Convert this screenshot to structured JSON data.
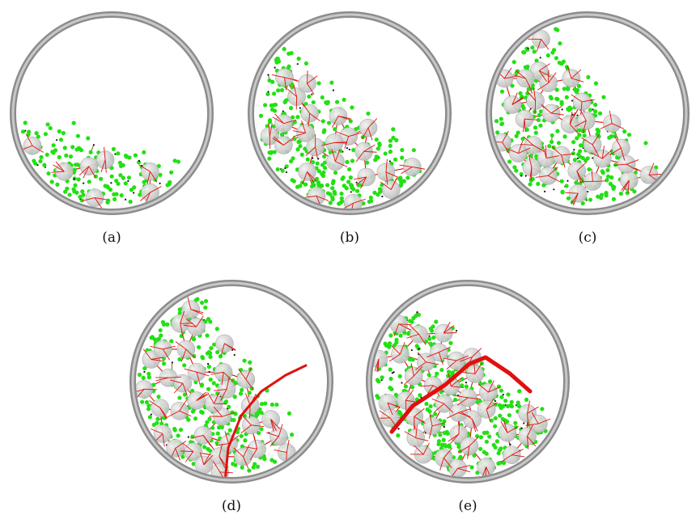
{
  "figure": {
    "panels": [
      {
        "id": "a",
        "caption": "(a)",
        "fill_angle_deg": 18,
        "fill_fraction": 0.3,
        "large_count": 7,
        "chain": false
      },
      {
        "id": "b",
        "caption": "(b)",
        "fill_angle_deg": 38,
        "fill_fraction": 0.5,
        "large_count": 22,
        "chain": false
      },
      {
        "id": "c",
        "caption": "(c)",
        "fill_angle_deg": 52,
        "fill_fraction": 0.58,
        "large_count": 30,
        "chain": false
      },
      {
        "id": "d",
        "caption": "(d)",
        "fill_angle_deg": 58,
        "fill_fraction": 0.6,
        "large_count": 34,
        "chain": true
      },
      {
        "id": "e",
        "caption": "(e)",
        "fill_angle_deg": 42,
        "fill_fraction": 0.62,
        "large_count": 36,
        "chain": true
      }
    ],
    "colors": {
      "drum_rim": "#8c8c8c",
      "drum_rim_light": "#c8c8c8",
      "large_particle": "#bdbdbd",
      "small_particle": "#22e014",
      "force_network": "#e01010",
      "dark_force": "#6a3a00"
    }
  }
}
